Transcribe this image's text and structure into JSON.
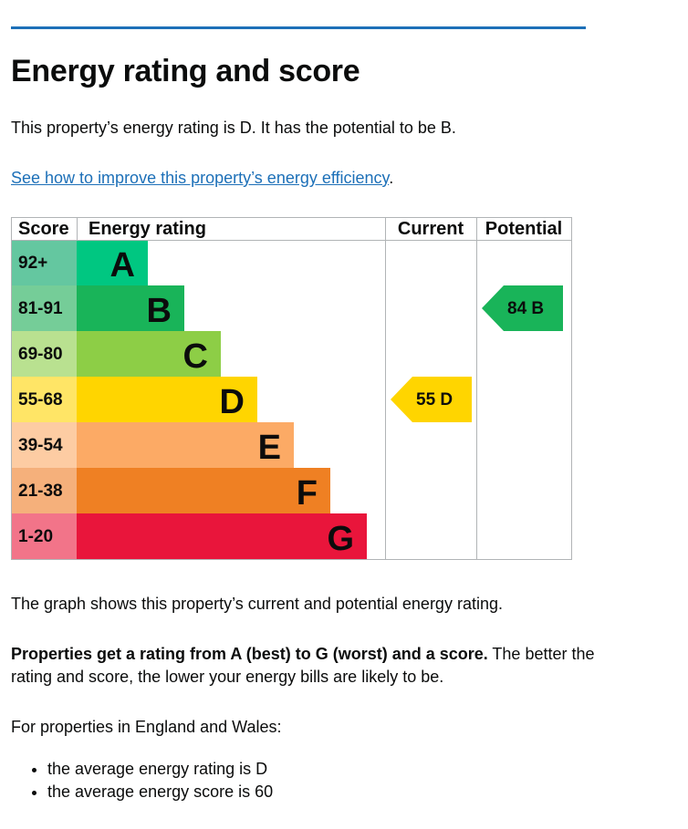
{
  "page": {
    "title": "Energy rating and score",
    "intro": "This property’s energy rating is D. It has the potential to be B.",
    "link_text": "See how to improve this property’s energy efficiency",
    "link_suffix": ".",
    "graph_caption": "The graph shows this property’s current and potential energy rating.",
    "rating_bold": "Properties get a rating from A (best) to G (worst) and a score.",
    "rating_rest": " The better the rating and score, the lower your energy bills are likely to be.",
    "region_intro": "For properties in England and Wales:",
    "bullets": [
      "the average energy rating is D",
      "the average energy score is 60"
    ]
  },
  "chart_data": {
    "type": "table",
    "headers": {
      "score": "Score",
      "rating": "Energy rating",
      "current": "Current",
      "potential": "Potential"
    },
    "bands": [
      {
        "letter": "A",
        "score": "92+",
        "color": "#008054",
        "bar_color": "#00c781",
        "score_bg": "#64c7a0"
      },
      {
        "letter": "B",
        "score": "81-91",
        "color": "#19b459",
        "bar_color": "#19b459",
        "score_bg": "#75cd98"
      },
      {
        "letter": "C",
        "score": "69-80",
        "color": "#8dce46",
        "bar_color": "#8dce46",
        "score_bg": "#b9e190"
      },
      {
        "letter": "D",
        "score": "55-68",
        "color": "#ffd500",
        "bar_color": "#ffd500",
        "score_bg": "#ffe566"
      },
      {
        "letter": "E",
        "score": "39-54",
        "color": "#fcaa65",
        "bar_color": "#fcaa65",
        "score_bg": "#fdcca3"
      },
      {
        "letter": "F",
        "score": "21-38",
        "color": "#ef8023",
        "bar_color": "#ef8023",
        "score_bg": "#f5b07b"
      },
      {
        "letter": "G",
        "score": "1-20",
        "color": "#e9153b",
        "bar_color": "#e9153b",
        "score_bg": "#f27489"
      }
    ],
    "current": {
      "score": 55,
      "letter": "D",
      "label": "55  D",
      "color": "#ffd500"
    },
    "potential": {
      "score": 84,
      "letter": "B",
      "label": "84  B",
      "color": "#19b459"
    }
  }
}
